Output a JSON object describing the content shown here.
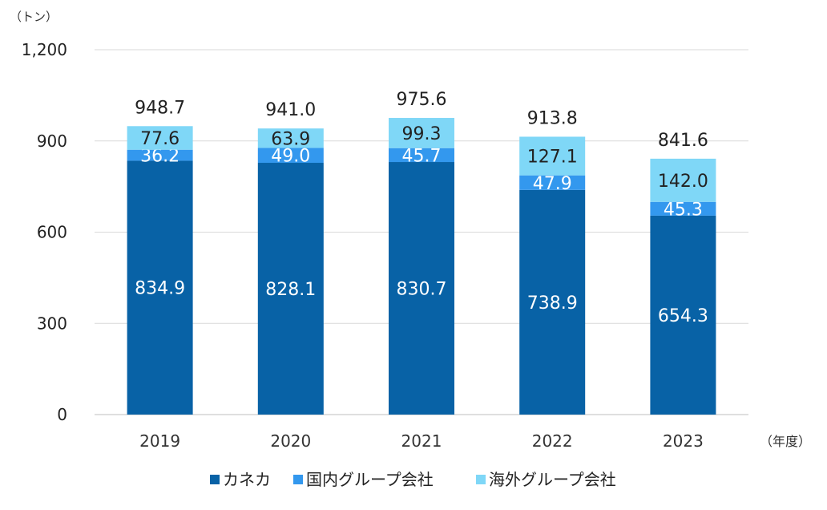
{
  "chart_data": {
    "type": "bar",
    "stacked": true,
    "y_unit_label": "（トン）",
    "x_unit_label": "（年度）",
    "categories": [
      "2019",
      "2020",
      "2021",
      "2022",
      "2023"
    ],
    "ylim": [
      0,
      1200
    ],
    "yticks": [
      {
        "value": 0,
        "label": "0"
      },
      {
        "value": 300,
        "label": "300"
      },
      {
        "value": 600,
        "label": "600"
      },
      {
        "value": 900,
        "label": "900"
      },
      {
        "value": 1200,
        "label": "1,200"
      }
    ],
    "grid": true,
    "legend_position": "bottom",
    "series": [
      {
        "name": "カネカ",
        "color": "#0862A6",
        "label_color": "#ffffff",
        "labels": [
          "834.9",
          "828.1",
          "830.7",
          "738.9",
          "654.3"
        ],
        "values": [
          834.9,
          828.1,
          830.7,
          738.9,
          654.3
        ]
      },
      {
        "name": "国内グループ会社",
        "color": "#3398EE",
        "label_color": "#ffffff",
        "labels": [
          "36.2",
          "49.0",
          "45.7",
          "47.9",
          "45.3"
        ],
        "values": [
          36.2,
          49.0,
          45.7,
          47.9,
          45.3
        ]
      },
      {
        "name": "海外グループ会社",
        "color": "#7FD7F7",
        "label_color": "#222222",
        "labels": [
          "77.6",
          "63.9",
          "99.3",
          "127.1",
          "142.0"
        ],
        "values": [
          77.6,
          63.9,
          99.3,
          127.1,
          142.0
        ]
      }
    ],
    "totals": [
      "948.7",
      "941.0",
      "975.6",
      "913.8",
      "841.6"
    ]
  }
}
